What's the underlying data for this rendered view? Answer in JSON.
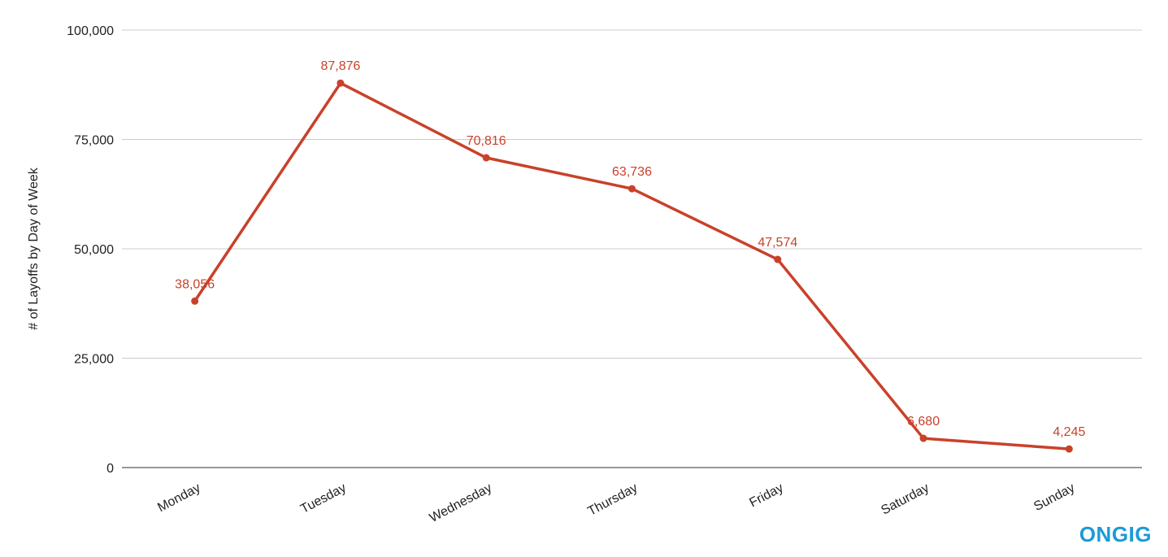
{
  "chart_data": {
    "type": "line",
    "categories": [
      "Monday",
      "Tuesday",
      "Wednesday",
      "Thursday",
      "Friday",
      "Saturday",
      "Sunday"
    ],
    "series": [
      {
        "values": [
          38056,
          87876,
          70816,
          63736,
          47574,
          6680,
          4245
        ],
        "data_labels": [
          "38,056",
          "87,876",
          "70,816",
          "63,736",
          "47,574",
          "6,680",
          "4,245"
        ]
      }
    ],
    "title": "",
    "xlabel": "",
    "ylabel": "# of Layoffs by Day of Week",
    "ylim": [
      0,
      100000
    ],
    "yticks": [
      0,
      25000,
      50000,
      75000,
      100000
    ],
    "ytick_labels": [
      "0",
      "25,000",
      "50,000",
      "75,000",
      "100,000"
    ],
    "grid": true,
    "legend": "none"
  },
  "colors": {
    "series": "#c9412a",
    "brand": "#1a9bd7"
  },
  "brand": {
    "logo_text": "ONGIG"
  }
}
